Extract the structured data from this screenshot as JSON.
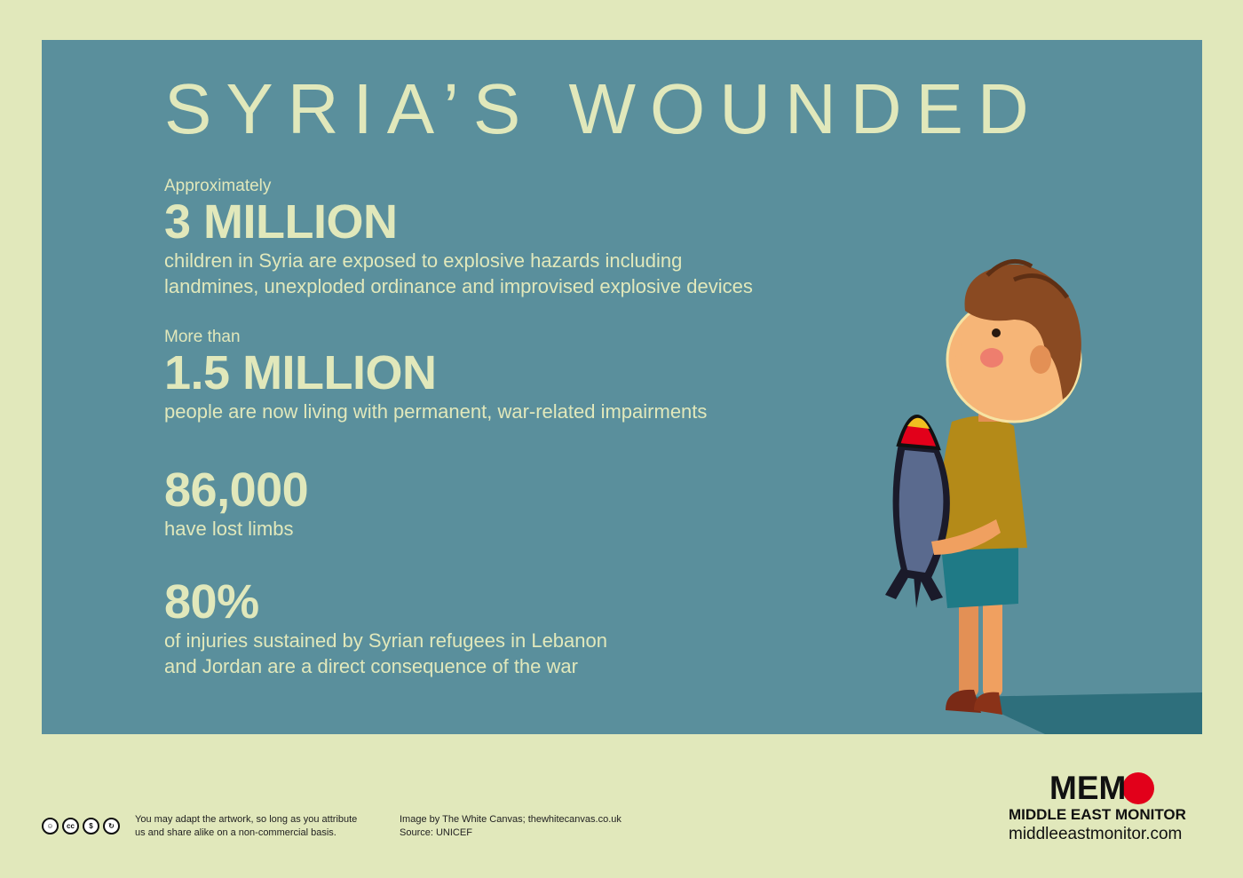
{
  "title": "SYRIA’S WOUNDED",
  "stats": [
    {
      "prefix": "Approximately",
      "number": "3 MILLION",
      "lines": [
        "children in Syria are exposed to explosive hazards including",
        "landmines, unexploded ordinance and improvised explosive devices"
      ]
    },
    {
      "prefix": "More than",
      "number": "1.5 MILLION",
      "lines": [
        "people are now living with permanent, war-related impairments"
      ]
    },
    {
      "number": "86,000",
      "lines": [
        "have lost limbs"
      ]
    },
    {
      "number": "80%",
      "lines": [
        "of injuries sustained by Syrian refugees in Lebanon",
        "and Jordan are a direct consequence of the war"
      ]
    }
  ],
  "footer": {
    "license_icons": [
      "cc-by-icon",
      "cc-logo-icon",
      "cc-nc-icon",
      "cc-sa-icon"
    ],
    "license_lines": [
      "You may adapt the artwork, so long as you attribute",
      "us and share alike on a non-commercial basis."
    ],
    "credit_lines": [
      "Image by The White Canvas; thewhitecanvas.co.uk",
      "Source: UNICEF"
    ]
  },
  "logo": {
    "word": "MEM",
    "name": "MIDDLE EAST MONITOR",
    "url": "middleeastmonitor.com",
    "dot_color": "#e2001a"
  },
  "colors": {
    "background": "#e1e8bb",
    "panel": "#5a8f9c",
    "text": "#e1e8bb"
  }
}
